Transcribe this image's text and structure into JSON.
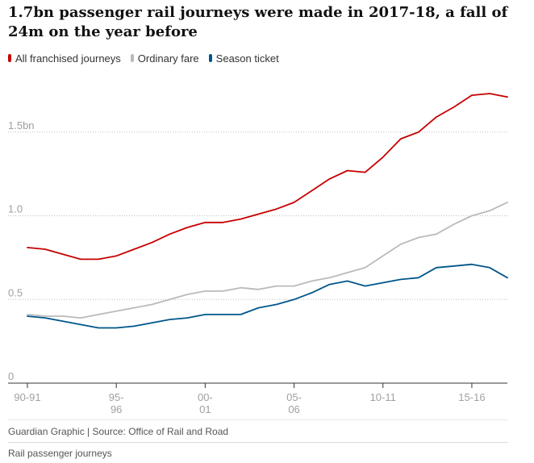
{
  "chart_data": {
    "type": "line",
    "title": "1.7bn passenger rail journeys were made in 2017-18, a fall of 24m on the year before",
    "xlabel": "",
    "ylabel": "",
    "ylim": [
      0,
      1.85
    ],
    "grid": "horizontal dotted",
    "legend_position": "top-left",
    "x": [
      "1990-91",
      "1991-92",
      "1992-93",
      "1993-94",
      "1994-95",
      "1995-96",
      "1996-97",
      "1997-98",
      "1998-99",
      "1999-00",
      "2000-01",
      "2001-02",
      "2002-03",
      "2003-04",
      "2004-05",
      "2005-06",
      "2006-07",
      "2007-08",
      "2008-09",
      "2009-10",
      "2010-11",
      "2011-12",
      "2012-13",
      "2013-14",
      "2014-15",
      "2015-16",
      "2016-17",
      "2017-18"
    ],
    "series": [
      {
        "name": "All franchised journeys",
        "color": "#c70000",
        "values": [
          0.81,
          0.8,
          0.77,
          0.74,
          0.74,
          0.76,
          0.8,
          0.84,
          0.89,
          0.93,
          0.96,
          0.96,
          0.98,
          1.01,
          1.04,
          1.08,
          1.15,
          1.22,
          1.27,
          1.26,
          1.35,
          1.46,
          1.5,
          1.59,
          1.65,
          1.72,
          1.73,
          1.71
        ]
      },
      {
        "name": "Ordinary fare",
        "color": "#bababa",
        "values": [
          0.41,
          0.4,
          0.4,
          0.39,
          0.41,
          0.43,
          0.45,
          0.47,
          0.5,
          0.53,
          0.55,
          0.55,
          0.57,
          0.56,
          0.58,
          0.58,
          0.61,
          0.63,
          0.66,
          0.69,
          0.76,
          0.83,
          0.87,
          0.89,
          0.95,
          1.0,
          1.03,
          1.08
        ]
      },
      {
        "name": "Season ticket",
        "color": "#005689",
        "values": [
          0.4,
          0.39,
          0.37,
          0.35,
          0.33,
          0.33,
          0.34,
          0.36,
          0.38,
          0.39,
          0.41,
          0.41,
          0.41,
          0.45,
          0.47,
          0.5,
          0.54,
          0.59,
          0.61,
          0.58,
          0.6,
          0.62,
          0.63,
          0.69,
          0.7,
          0.71,
          0.69,
          0.63
        ]
      }
    ],
    "y_ticks": [
      {
        "value": 0,
        "label": "0"
      },
      {
        "value": 0.5,
        "label": "0.5"
      },
      {
        "value": 1.0,
        "label": "1.0"
      },
      {
        "value": 1.5,
        "label": "1.5bn"
      }
    ],
    "x_ticks": [
      {
        "index": 0,
        "lines": [
          "90-91"
        ]
      },
      {
        "index": 5,
        "lines": [
          "95-",
          "96"
        ]
      },
      {
        "index": 10,
        "lines": [
          "00-",
          "01"
        ]
      },
      {
        "index": 15,
        "lines": [
          "05-",
          "06"
        ]
      },
      {
        "index": 20,
        "lines": [
          "10-11"
        ]
      },
      {
        "index": 25,
        "lines": [
          "15-16"
        ]
      }
    ]
  },
  "footer": {
    "source": "Guardian Graphic | Source: Office of Rail and Road",
    "caption": "Rail passenger journeys"
  }
}
